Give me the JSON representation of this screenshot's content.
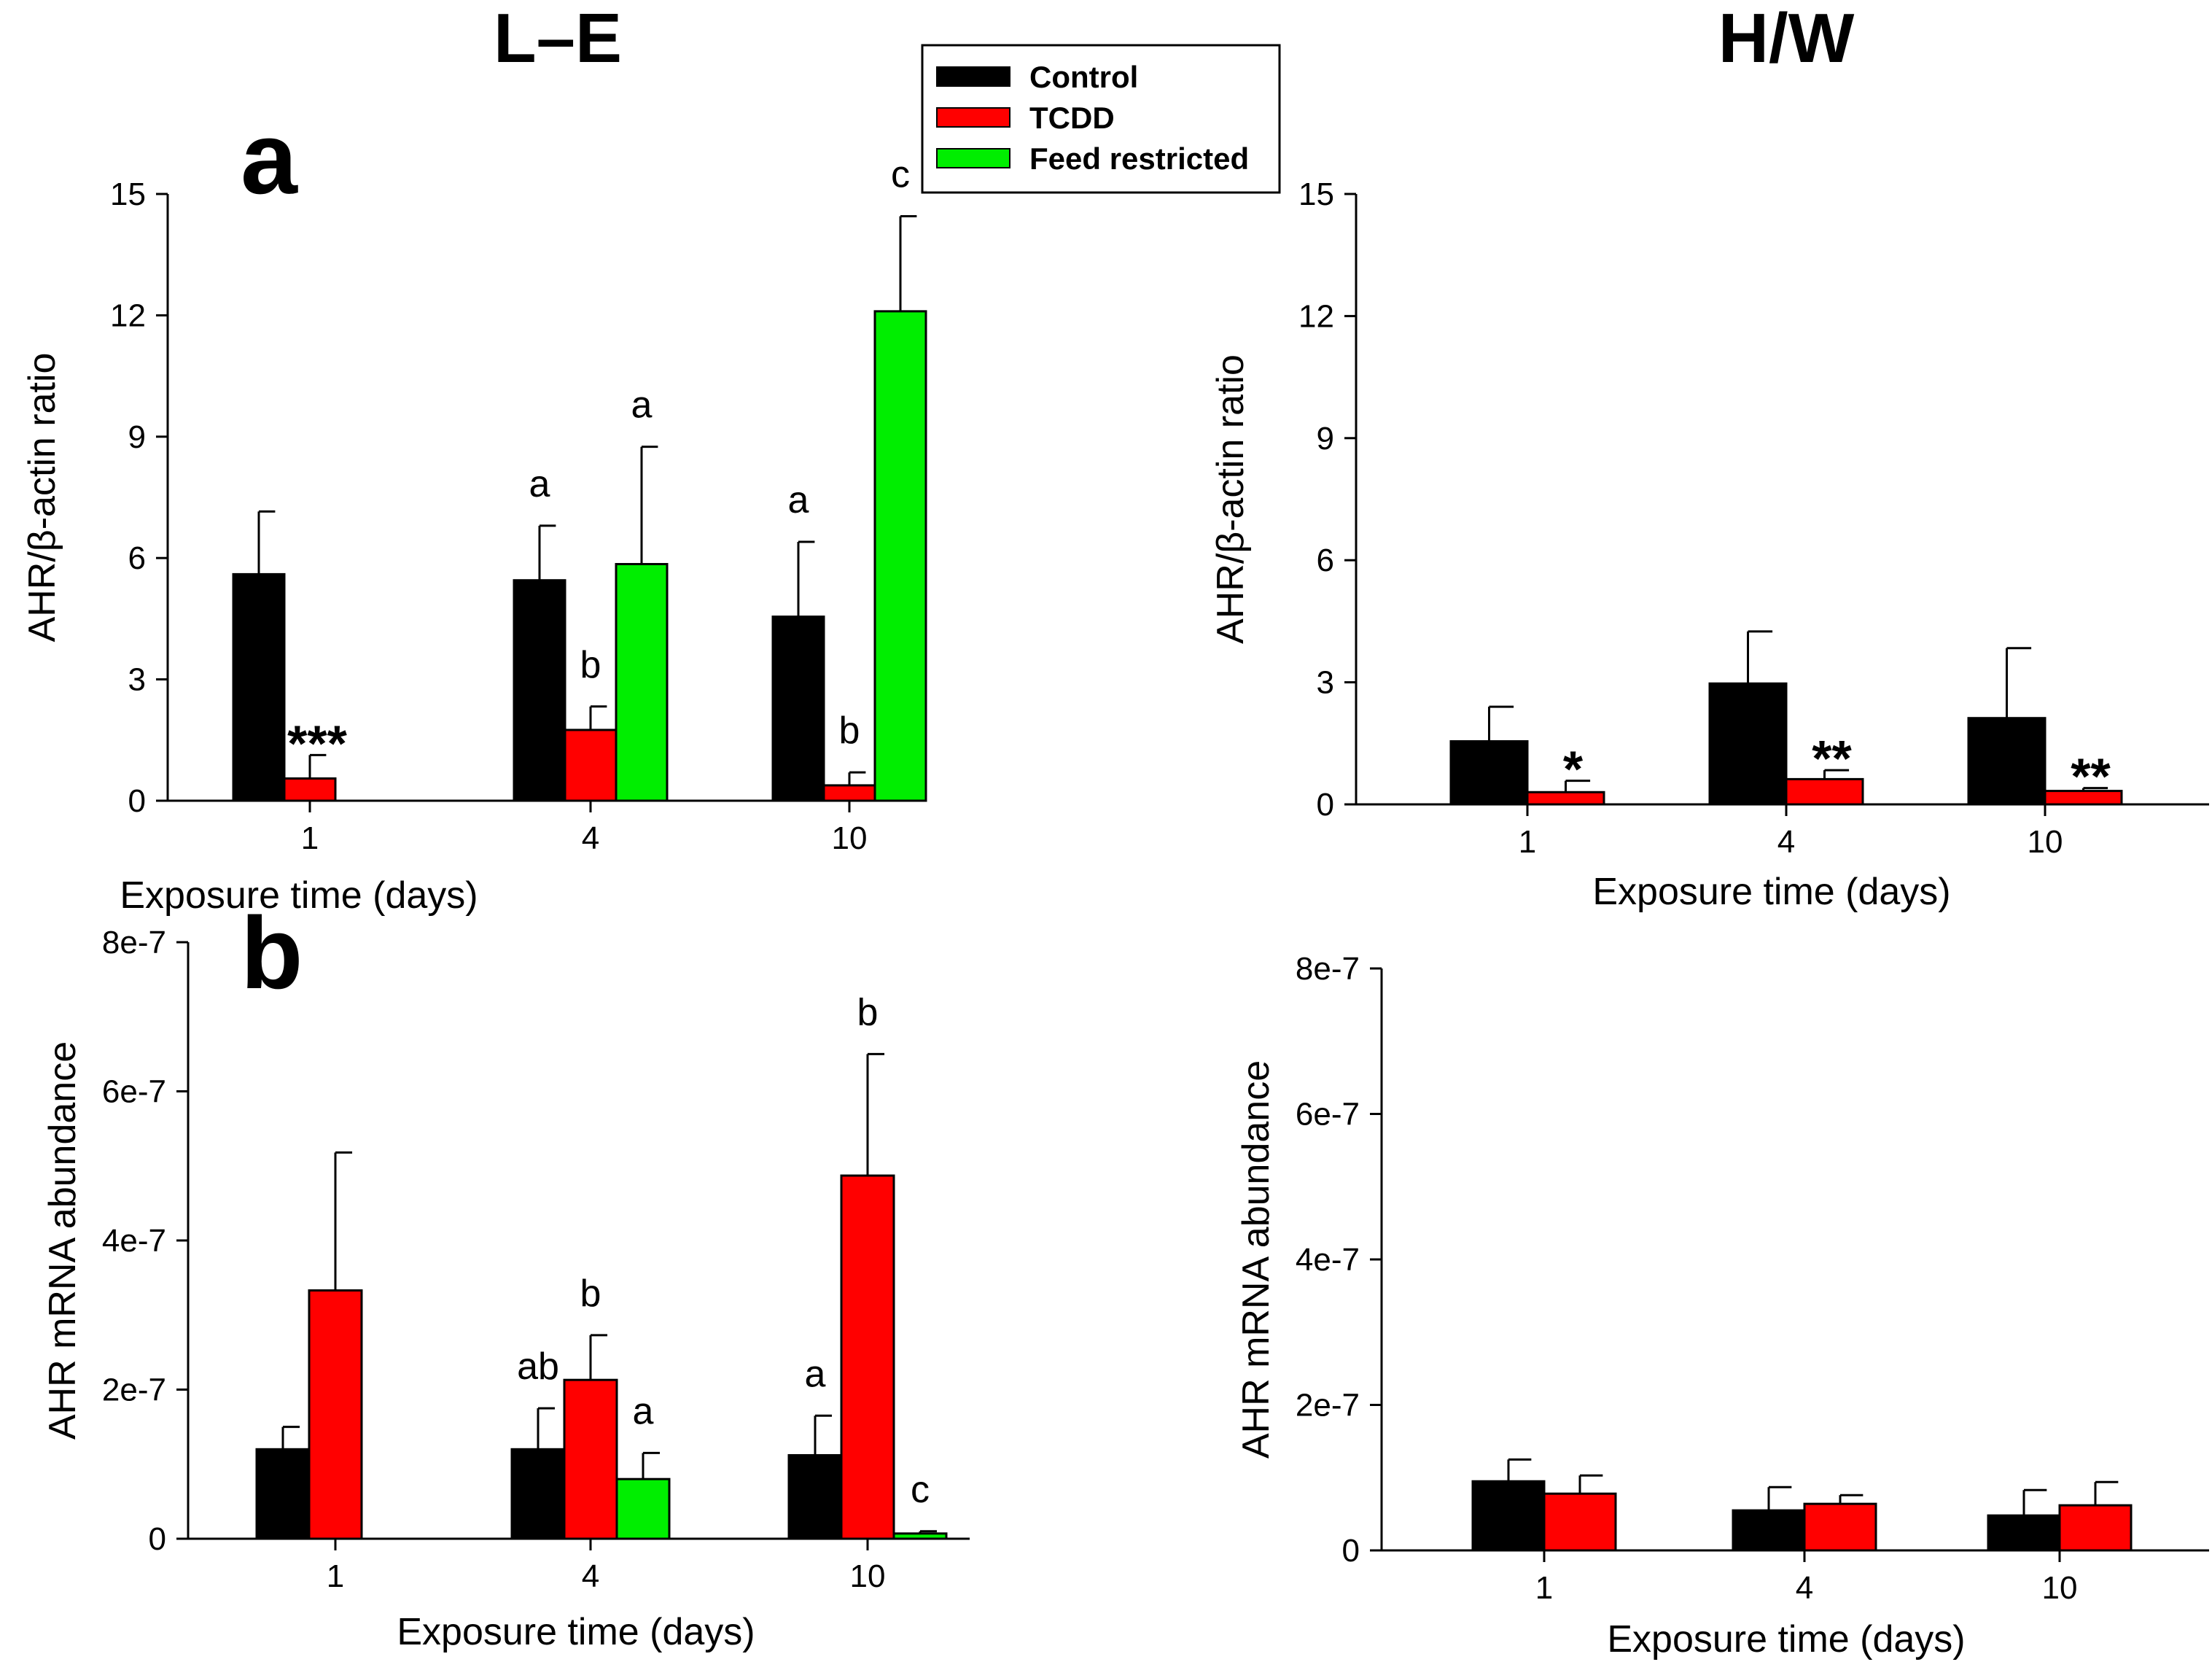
{
  "column_titles": {
    "left": "L–E",
    "right": "H/W"
  },
  "legend": {
    "entries": [
      {
        "label": "Control",
        "color": "#000000"
      },
      {
        "label": "TCDD",
        "color": "#ff0000"
      },
      {
        "label": "Feed restricted",
        "color": "#00ee00"
      }
    ]
  },
  "chart_data": [
    {
      "id": "le-protein",
      "type": "bar",
      "panel_label": "a",
      "xlabel": "Exposure time (days)",
      "ylabel": "AHR/β-actin ratio",
      "categories": [
        "1",
        "4",
        "10"
      ],
      "ylim": [
        0,
        15
      ],
      "yticks": [
        "0",
        "3",
        "6",
        "9",
        "12",
        "15"
      ],
      "ytick_values": [
        0,
        3,
        6,
        9,
        12,
        15
      ],
      "series": [
        {
          "name": "Control",
          "values": [
            5.6,
            5.45,
            4.55
          ],
          "errors": [
            1.55,
            1.35,
            1.85
          ],
          "annotations": [
            "",
            "a",
            "a"
          ]
        },
        {
          "name": "TCDD",
          "values": [
            0.55,
            1.75,
            0.38
          ],
          "errors": [
            0.58,
            0.58,
            0.32
          ],
          "annotations": [
            "***",
            "b",
            "b"
          ]
        },
        {
          "name": "Feed restricted",
          "values": [
            null,
            5.85,
            12.1
          ],
          "errors": [
            null,
            2.9,
            2.35
          ],
          "annotations": [
            "",
            "a",
            "c"
          ]
        }
      ]
    },
    {
      "id": "hw-protein",
      "type": "bar",
      "xlabel": "Exposure time (days)",
      "ylabel": "AHR/β-actin ratio",
      "categories": [
        "1",
        "4",
        "10"
      ],
      "ylim": [
        0,
        15
      ],
      "yticks": [
        "0",
        "3",
        "6",
        "9",
        "12",
        "15"
      ],
      "ytick_values": [
        0,
        3,
        6,
        9,
        12,
        15
      ],
      "series": [
        {
          "name": "Control",
          "values": [
            1.55,
            2.97,
            2.12
          ],
          "errors": [
            0.85,
            1.28,
            1.72
          ],
          "annotations": [
            "",
            "",
            ""
          ]
        },
        {
          "name": "TCDD",
          "values": [
            0.3,
            0.62,
            0.33
          ],
          "errors": [
            0.28,
            0.22,
            0.07
          ],
          "annotations": [
            "*",
            "**",
            "**"
          ]
        }
      ]
    },
    {
      "id": "le-mrna",
      "type": "bar",
      "panel_label": "b",
      "xlabel": "Exposure time (days)",
      "ylabel": "AHR mRNA abundance",
      "categories": [
        "1",
        "4",
        "10"
      ],
      "ylim": [
        0,
        8e-07
      ],
      "yticks": [
        "0",
        "2e-7",
        "4e-7",
        "6e-7",
        "8e-7"
      ],
      "ytick_values": [
        0,
        2e-07,
        4e-07,
        6e-07,
        8e-07
      ],
      "series": [
        {
          "name": "Control",
          "values": [
            1.2e-07,
            1.2e-07,
            1.12e-07
          ],
          "errors": [
            3e-08,
            5.5e-08,
            5.3e-08
          ],
          "annotations": [
            "",
            "ab",
            "a"
          ]
        },
        {
          "name": "TCDD",
          "values": [
            3.33e-07,
            2.13e-07,
            4.87e-07
          ],
          "errors": [
            1.85e-07,
            6e-08,
            1.63e-07
          ],
          "annotations": [
            "",
            "b",
            "b"
          ]
        },
        {
          "name": "Feed restricted",
          "values": [
            null,
            8e-08,
            7e-09
          ],
          "errors": [
            null,
            3.5e-08,
            3e-09
          ],
          "annotations": [
            "",
            "a",
            "c"
          ]
        }
      ]
    },
    {
      "id": "hw-mrna",
      "type": "bar",
      "xlabel": "Exposure time (days)",
      "ylabel": "AHR mRNA abundance",
      "categories": [
        "1",
        "4",
        "10"
      ],
      "ylim": [
        0,
        8e-07
      ],
      "yticks": [
        "0",
        "2e-7",
        "4e-7",
        "6e-7",
        "8e-7"
      ],
      "ytick_values": [
        0,
        2e-07,
        4e-07,
        6e-07,
        8e-07
      ],
      "series": [
        {
          "name": "Control",
          "values": [
            9.5e-08,
            5.5e-08,
            4.8e-08
          ],
          "errors": [
            3e-08,
            3.2e-08,
            3.5e-08
          ],
          "annotations": [
            "",
            "",
            ""
          ]
        },
        {
          "name": "TCDD",
          "values": [
            7.8e-08,
            6.4e-08,
            6.2e-08
          ],
          "errors": [
            2.5e-08,
            1.2e-08,
            3.2e-08
          ],
          "annotations": [
            "",
            "",
            ""
          ]
        }
      ]
    }
  ]
}
